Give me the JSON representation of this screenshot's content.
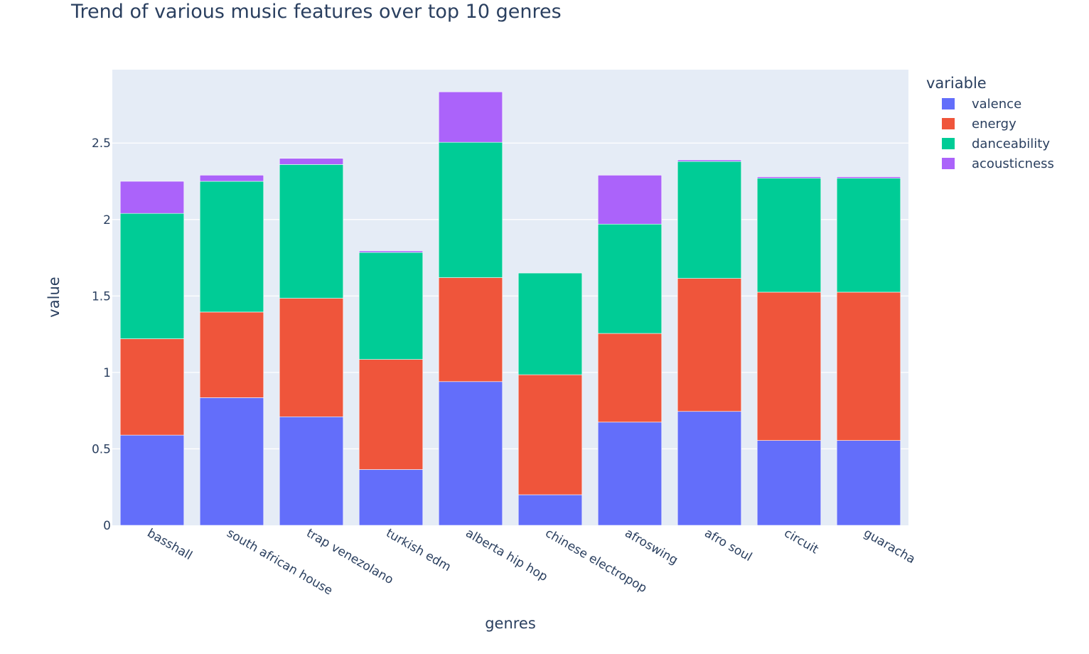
{
  "chart_data": {
    "type": "bar",
    "stacked": true,
    "title": "Trend of various music features over top 10 genres",
    "xlabel": "genres",
    "ylabel": "value",
    "ylim": [
      0,
      2.98
    ],
    "yticks": [
      0,
      0.5,
      1,
      1.5,
      2,
      2.5
    ],
    "ytick_labels": [
      "0",
      "0.5",
      "1",
      "1.5",
      "2",
      "2.5"
    ],
    "grid": true,
    "legend_title": "variable",
    "legend_position": "top-right",
    "categories": [
      "basshall",
      "south african house",
      "trap venezolano",
      "turkish edm",
      "alberta hip hop",
      "chinese electropop",
      "afroswing",
      "afro soul",
      "circuit",
      "guaracha"
    ],
    "series": [
      {
        "name": "valence",
        "color": "#636efa",
        "values": [
          0.59,
          0.835,
          0.71,
          0.365,
          0.94,
          0.2,
          0.675,
          0.745,
          0.555,
          0.555
        ]
      },
      {
        "name": "energy",
        "color": "#ef553b",
        "values": [
          0.63,
          0.56,
          0.775,
          0.72,
          0.68,
          0.785,
          0.58,
          0.87,
          0.97,
          0.97
        ]
      },
      {
        "name": "danceability",
        "color": "#00cc96",
        "values": [
          0.82,
          0.855,
          0.875,
          0.7,
          0.885,
          0.665,
          0.715,
          0.765,
          0.745,
          0.745
        ]
      },
      {
        "name": "acousticness",
        "color": "#ab63fa",
        "values": [
          0.21,
          0.04,
          0.04,
          0.01,
          0.33,
          0.0,
          0.32,
          0.01,
          0.01,
          0.01
        ]
      }
    ]
  }
}
